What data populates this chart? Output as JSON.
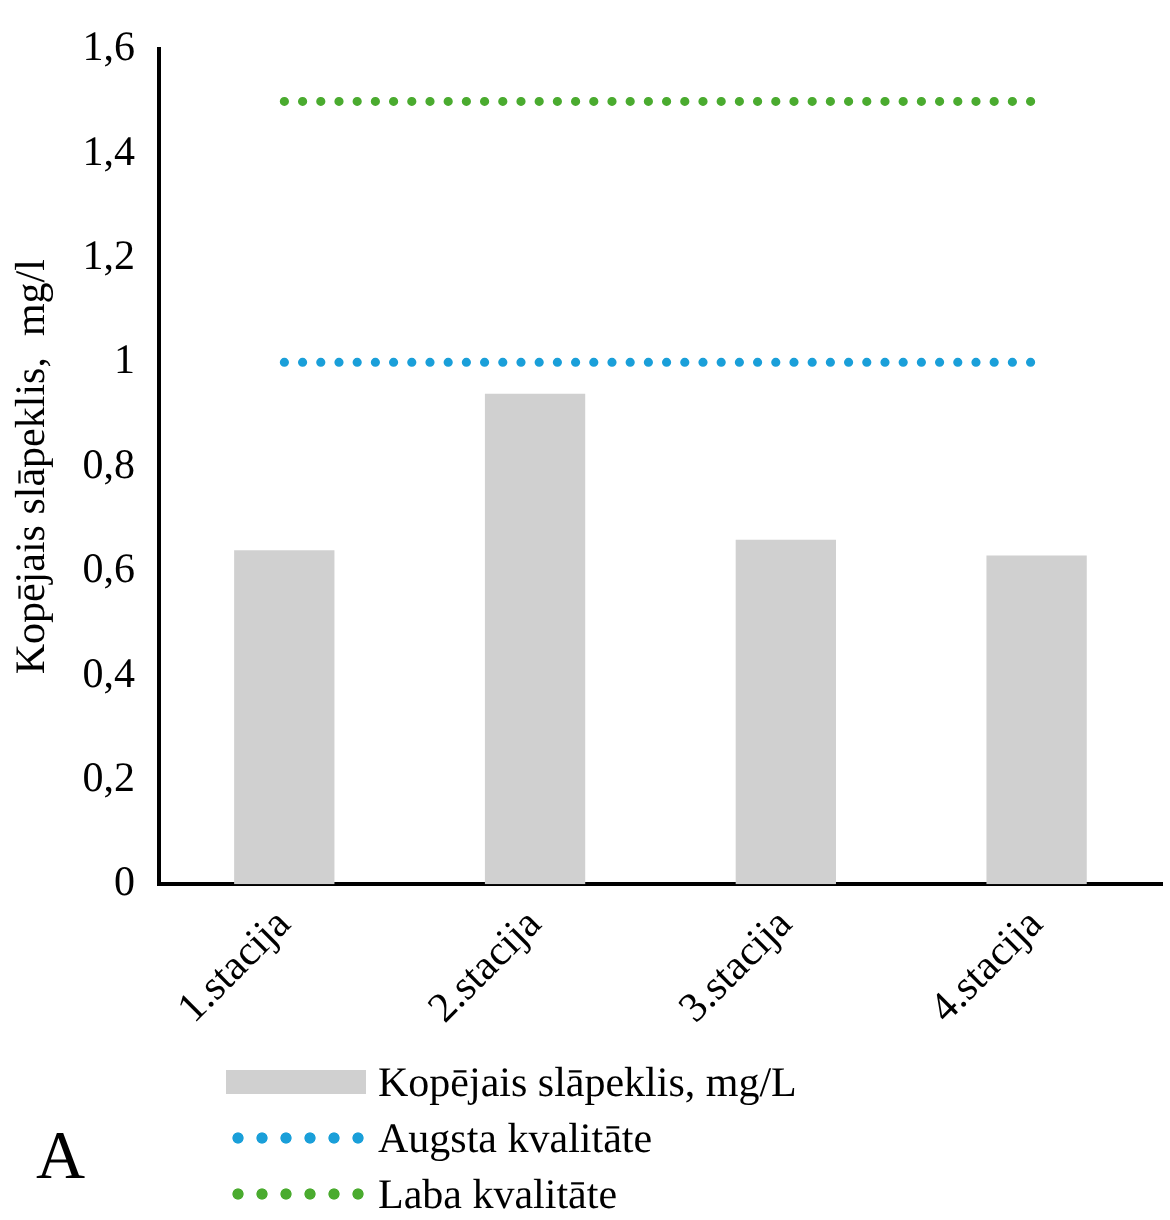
{
  "chart_data": {
    "type": "bar",
    "ylabel": "Kopējais slāpeklis,  mg/l",
    "categories": [
      "1.stacija",
      "2.stacija",
      "3.stacija",
      "4.stacija"
    ],
    "series": [
      {
        "name": "Kopējais slāpeklis, mg/L",
        "color": "#d0d0d0",
        "values": [
          0.64,
          0.94,
          0.66,
          0.63
        ]
      },
      {
        "name": "Augsta kvalitāte",
        "type": "line",
        "color": "#1a9fd9",
        "line_style": "dotted",
        "values": [
          1,
          1,
          1,
          1
        ]
      },
      {
        "name": "Laba kvalitāte",
        "type": "line",
        "color": "#4aab2f",
        "line_style": "dotted",
        "values": [
          1.5,
          1.5,
          1.5,
          1.5
        ]
      }
    ],
    "ylim": [
      0,
      1.6
    ],
    "yticks": [
      {
        "value": 0,
        "label": "0"
      },
      {
        "value": 0.2,
        "label": "0,2"
      },
      {
        "value": 0.4,
        "label": "0,4"
      },
      {
        "value": 0.6,
        "label": "0,6"
      },
      {
        "value": 0.8,
        "label": "0,8"
      },
      {
        "value": 1,
        "label": "1"
      },
      {
        "value": 1.2,
        "label": "1,2"
      },
      {
        "value": 1.4,
        "label": "1,4"
      },
      {
        "value": 1.6,
        "label": "1,6"
      }
    ],
    "grid": false,
    "legend": "bottom",
    "marker": "none",
    "annotations": [
      "A"
    ]
  }
}
